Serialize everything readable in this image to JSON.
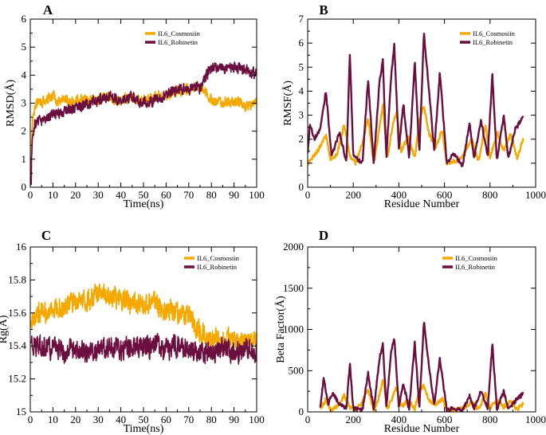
{
  "colors": {
    "cosmosiin": "#f5a800",
    "robinetin": "#6b0f3f"
  },
  "chart_data": [
    {
      "panel": "A",
      "type": "line",
      "xlabel": "Time(ns)",
      "ylabel": "RMSD(Å)",
      "xlim": [
        0,
        100
      ],
      "ylim": [
        0,
        6
      ],
      "xticks": [
        0,
        10,
        20,
        30,
        40,
        50,
        60,
        70,
        80,
        90,
        100
      ],
      "yticks": [
        0,
        1,
        2,
        3,
        4,
        5,
        6
      ],
      "legend_position": "top-right",
      "series": [
        {
          "name": "IL6_Cosmosiin",
          "color": "#f5a800",
          "x": [
            0,
            1,
            2,
            4,
            6,
            8,
            10,
            12,
            15,
            18,
            20,
            25,
            30,
            35,
            40,
            45,
            50,
            55,
            60,
            65,
            70,
            73,
            75,
            78,
            80,
            85,
            90,
            95,
            100
          ],
          "y": [
            0.3,
            2.4,
            2.9,
            3.1,
            3.0,
            3.2,
            3.3,
            3.1,
            3.2,
            3.0,
            3.1,
            3.2,
            3.1,
            3.2,
            3.1,
            3.2,
            3.1,
            3.2,
            3.3,
            3.4,
            3.5,
            3.6,
            3.6,
            3.4,
            3.1,
            3.0,
            3.1,
            2.9,
            3.0
          ]
        },
        {
          "name": "IL6_Robinetin",
          "color": "#6b0f3f",
          "x": [
            0,
            1,
            2,
            4,
            6,
            8,
            10,
            12,
            15,
            18,
            20,
            25,
            30,
            35,
            40,
            45,
            50,
            55,
            60,
            65,
            70,
            73,
            75,
            78,
            80,
            85,
            90,
            95,
            100
          ],
          "y": [
            0.1,
            1.8,
            2.2,
            2.4,
            2.4,
            2.5,
            2.6,
            2.6,
            2.7,
            2.8,
            2.8,
            3.0,
            3.1,
            3.2,
            3.1,
            3.2,
            3.0,
            3.1,
            3.3,
            3.5,
            3.5,
            3.6,
            3.5,
            4.0,
            4.3,
            4.2,
            4.3,
            4.2,
            4.0
          ]
        }
      ]
    },
    {
      "panel": "B",
      "type": "line",
      "xlabel": "Residue Number",
      "ylabel": "RMSF(Å)",
      "xlim": [
        0,
        1000
      ],
      "ylim": [
        0,
        7
      ],
      "xticks": [
        0,
        200,
        400,
        600,
        800,
        1000
      ],
      "yticks": [
        0,
        1,
        2,
        3,
        4,
        5,
        6,
        7
      ],
      "legend_position": "top-right",
      "series": [
        {
          "name": "IL6_Cosmosiin",
          "color": "#f5a800",
          "x": [
            0,
            20,
            50,
            80,
            100,
            130,
            160,
            185,
            210,
            240,
            265,
            290,
            310,
            330,
            350,
            370,
            390,
            410,
            440,
            470,
            490,
            510,
            530,
            560,
            590,
            610,
            650,
            680,
            720,
            750,
            780,
            800,
            830,
            860,
            890,
            920,
            945
          ],
          "y": [
            1.0,
            1.2,
            1.6,
            2.2,
            1.1,
            1.4,
            2.6,
            1.3,
            1.0,
            1.8,
            2.9,
            1.0,
            2.2,
            3.4,
            1.2,
            2.4,
            3.2,
            1.5,
            2.1,
            1.2,
            2.8,
            3.4,
            2.3,
            1.6,
            2.4,
            1.0,
            1.1,
            1.3,
            2.0,
            1.1,
            2.6,
            1.2,
            2.3,
            1.5,
            2.2,
            1.2,
            2.0
          ]
        },
        {
          "name": "IL6_Robinetin",
          "color": "#6b0f3f",
          "x": [
            0,
            10,
            30,
            55,
            80,
            105,
            140,
            170,
            185,
            200,
            240,
            265,
            290,
            315,
            330,
            345,
            365,
            380,
            400,
            420,
            445,
            470,
            490,
            510,
            530,
            555,
            580,
            610,
            640,
            680,
            710,
            730,
            760,
            790,
            810,
            830,
            860,
            880,
            910,
            945
          ],
          "y": [
            1.4,
            2.6,
            2.0,
            2.4,
            4.0,
            1.3,
            2.3,
            1.0,
            5.6,
            1.3,
            1.0,
            4.5,
            1.0,
            4.4,
            5.3,
            1.2,
            4.5,
            5.9,
            1.6,
            3.5,
            1.2,
            5.2,
            1.4,
            6.4,
            4.3,
            1.5,
            4.8,
            1.0,
            1.4,
            0.9,
            2.7,
            1.2,
            2.8,
            1.3,
            4.7,
            1.1,
            3.0,
            1.2,
            2.4,
            2.9
          ]
        }
      ]
    },
    {
      "panel": "C",
      "type": "line",
      "xlabel": "Time(ns)",
      "ylabel": "Rg(Å)",
      "xlim": [
        0,
        100
      ],
      "ylim": [
        15,
        16
      ],
      "xticks": [
        0,
        10,
        20,
        30,
        40,
        50,
        60,
        70,
        80,
        90,
        100
      ],
      "yticks": [
        15,
        15.2,
        15.4,
        15.6,
        15.8,
        16
      ],
      "legend_position": "top-right",
      "series": [
        {
          "name": "IL6_Cosmosiin",
          "color": "#f5a800",
          "x": [
            0,
            5,
            10,
            15,
            20,
            25,
            30,
            35,
            40,
            45,
            50,
            55,
            60,
            65,
            70,
            75,
            80,
            85,
            90,
            95,
            100
          ],
          "y": [
            15.55,
            15.6,
            15.62,
            15.64,
            15.66,
            15.68,
            15.72,
            15.7,
            15.68,
            15.66,
            15.64,
            15.66,
            15.62,
            15.6,
            15.58,
            15.48,
            15.44,
            15.42,
            15.44,
            15.42,
            15.44
          ]
        },
        {
          "name": "IL6_Robinetin",
          "color": "#6b0f3f",
          "x": [
            0,
            5,
            10,
            15,
            20,
            25,
            30,
            35,
            40,
            45,
            50,
            55,
            60,
            65,
            70,
            75,
            80,
            85,
            90,
            95,
            100
          ],
          "y": [
            15.42,
            15.4,
            15.38,
            15.36,
            15.38,
            15.36,
            15.38,
            15.4,
            15.38,
            15.4,
            15.39,
            15.4,
            15.38,
            15.4,
            15.38,
            15.37,
            15.36,
            15.38,
            15.36,
            15.37,
            15.38
          ]
        }
      ]
    },
    {
      "panel": "D",
      "type": "line",
      "xlabel": "Residue Number",
      "ylabel": "Beta Factor(Å)",
      "xlim": [
        0,
        1000
      ],
      "ylim": [
        0,
        2000
      ],
      "xticks": [
        0,
        200,
        400,
        600,
        800,
        1000
      ],
      "yticks": [
        0,
        500,
        1000,
        1500,
        2000
      ],
      "legend_position": "top-right",
      "series": [
        {
          "name": "IL6_Cosmosiin",
          "color": "#f5a800",
          "x": [
            55,
            80,
            100,
            130,
            160,
            185,
            210,
            240,
            265,
            290,
            310,
            330,
            350,
            370,
            390,
            410,
            440,
            470,
            490,
            510,
            530,
            560,
            590,
            610,
            650,
            680,
            720,
            750,
            780,
            800,
            830,
            860,
            890,
            920,
            945
          ],
          "y": [
            40,
            150,
            30,
            60,
            200,
            60,
            20,
            120,
            280,
            20,
            150,
            400,
            40,
            160,
            300,
            60,
            140,
            40,
            250,
            320,
            150,
            80,
            160,
            20,
            30,
            40,
            120,
            30,
            220,
            40,
            150,
            60,
            120,
            30,
            100
          ]
        },
        {
          "name": "IL6_Robinetin",
          "color": "#6b0f3f",
          "x": [
            55,
            70,
            90,
            110,
            140,
            170,
            185,
            200,
            240,
            265,
            290,
            315,
            330,
            345,
            365,
            380,
            400,
            420,
            445,
            470,
            490,
            510,
            530,
            555,
            580,
            610,
            640,
            680,
            710,
            730,
            760,
            790,
            810,
            830,
            860,
            880,
            910,
            945
          ],
          "y": [
            60,
            400,
            100,
            230,
            90,
            40,
            590,
            40,
            20,
            470,
            20,
            650,
            820,
            40,
            700,
            900,
            60,
            340,
            30,
            840,
            40,
            1100,
            600,
            80,
            650,
            20,
            40,
            20,
            200,
            40,
            260,
            40,
            820,
            30,
            250,
            40,
            130,
            220
          ]
        }
      ]
    }
  ]
}
